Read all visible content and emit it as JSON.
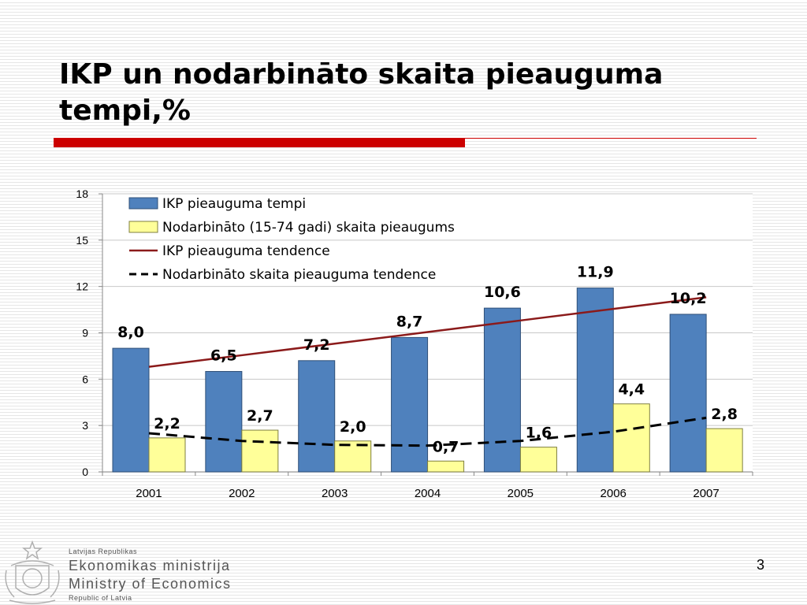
{
  "slide": {
    "title_line1": "IKP un nodarbināto skaita pieauguma",
    "title_line2": "tempi,%",
    "page_number": "3"
  },
  "footer": {
    "country_small": "Latvijas Republikas",
    "ministry_lv": "Ekonomikas ministrija",
    "ministry_en": "Ministry of Economics",
    "country_en_small": "Republic of Latvia"
  },
  "colors": {
    "accent_red": "#cc0000",
    "bar_gdp": "#4f81bd",
    "bar_employment": "#ffff99",
    "trend_gdp": "#8b1a1a",
    "trend_employment": "#000000"
  },
  "chart_data": {
    "type": "bar",
    "categories": [
      "2001",
      "2002",
      "2003",
      "2004",
      "2005",
      "2006",
      "2007"
    ],
    "ylim": [
      0,
      18
    ],
    "yticks": [
      0,
      3,
      6,
      9,
      12,
      15,
      18
    ],
    "grid": true,
    "legend_position": "top-left",
    "series": [
      {
        "name": "IKP pieauguma tempi",
        "kind": "bar",
        "values": [
          8.0,
          6.5,
          7.2,
          8.7,
          10.6,
          11.9,
          10.2
        ],
        "labels": [
          "8,0",
          "6,5",
          "7,2",
          "8,7",
          "10,6",
          "11,9",
          "10,2"
        ]
      },
      {
        "name": "Nodarbināto (15-74 gadi) skaita pieaugums",
        "kind": "bar",
        "values": [
          2.2,
          2.7,
          2.0,
          0.7,
          1.6,
          4.4,
          2.8
        ],
        "labels": [
          "2,2",
          "2,7",
          "2,0",
          "0,7",
          "1,6",
          "4,4",
          "2,8"
        ]
      },
      {
        "name": "IKP pieauguma tendence",
        "kind": "line",
        "values": [
          6.8,
          7.55,
          8.3,
          9.05,
          9.8,
          10.55,
          11.3
        ]
      },
      {
        "name": "Nodarbināto skaita pieauguma tendence",
        "kind": "dashed-line",
        "values": [
          2.5,
          2.0,
          1.75,
          1.7,
          2.0,
          2.6,
          3.5
        ]
      }
    ]
  }
}
